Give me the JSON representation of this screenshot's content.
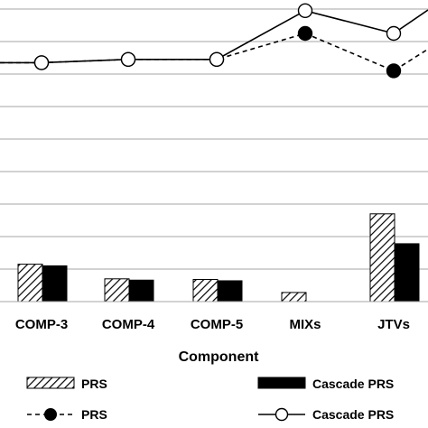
{
  "chart_data": {
    "type": "bar+line",
    "xlabel": "Component",
    "categories": [
      "COMP-3",
      "COMP-4",
      "COMP-5",
      "MIXs",
      "JTVs"
    ],
    "grid": true,
    "bar_series": [
      {
        "name": "PRS",
        "values": [
          1.15,
          0.7,
          0.68,
          0.28,
          2.7
        ],
        "style": "hatched"
      },
      {
        "name": "Cascade PRS",
        "values": [
          1.1,
          0.66,
          0.64,
          0.0,
          1.78
        ],
        "style": "solid"
      }
    ],
    "line_series": [
      {
        "name": "PRS",
        "values": [
          7.35,
          7.45,
          7.45,
          8.25,
          7.1
        ],
        "style": "dashed-filled"
      },
      {
        "name": "Cascade PRS",
        "values": [
          7.35,
          7.45,
          7.45,
          8.95,
          8.25
        ],
        "style": "solid-open"
      }
    ],
    "ylim": [
      0,
      9.5
    ],
    "legend": [
      {
        "name": "PRS",
        "marker": "hatched-bar"
      },
      {
        "name": "Cascade PRS",
        "marker": "solid-bar"
      },
      {
        "name": "PRS",
        "marker": "dashed-line-filled-circle"
      },
      {
        "name": "Cascade PRS",
        "marker": "solid-line-open-circle"
      }
    ],
    "colors": {
      "ink": "#000000",
      "grid": "#a6a6a6",
      "background": "#ffffff"
    }
  }
}
